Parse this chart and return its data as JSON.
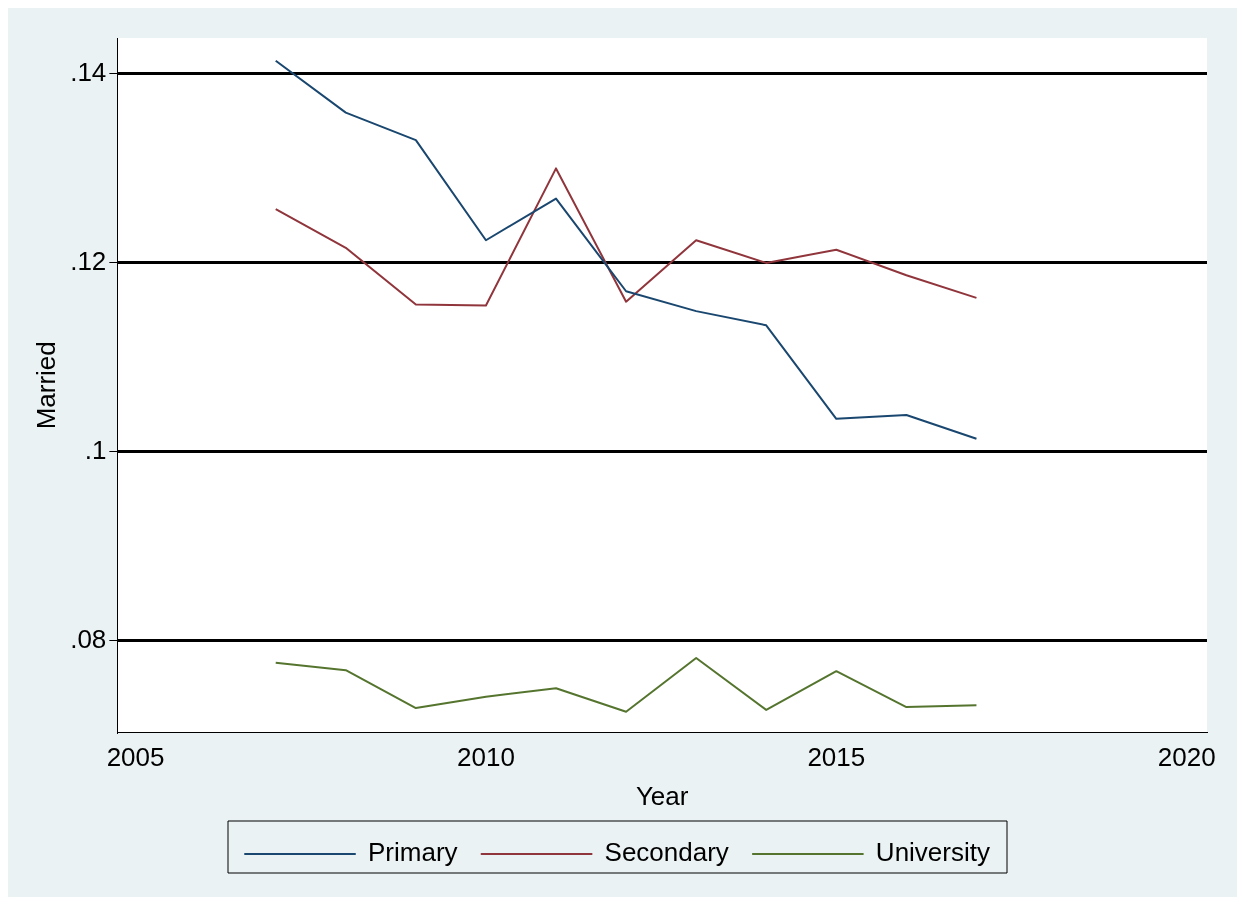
{
  "chart_data": {
    "type": "line",
    "xlabel": "Year",
    "ylabel": "Married",
    "x": [
      2007,
      2008,
      2009,
      2010,
      2011,
      2012,
      2013,
      2014,
      2015,
      2016,
      2017
    ],
    "series": [
      {
        "name": "Primary",
        "color": "#1a476f",
        "values": [
          0.1414,
          0.1359,
          0.133,
          0.1224,
          0.1268,
          0.117,
          0.1149,
          0.1134,
          0.1035,
          0.1039,
          0.1014
        ]
      },
      {
        "name": "Secondary",
        "color": "#90353b",
        "values": [
          0.1257,
          0.1216,
          0.1156,
          0.1155,
          0.13,
          0.1159,
          0.1224,
          0.12,
          0.1214,
          0.1187,
          0.1163
        ]
      },
      {
        "name": "University",
        "color": "#55752f",
        "values": [
          0.0777,
          0.0769,
          0.0729,
          0.0741,
          0.075,
          0.0725,
          0.0782,
          0.0727,
          0.0768,
          0.073,
          0.0732
        ]
      }
    ],
    "xlim": [
      2004.74,
      2020.29
    ],
    "xticks": [
      2005,
      2010,
      2015,
      2020
    ],
    "ylim": [
      0.0703,
      0.1438
    ],
    "yticks": [
      {
        "value": 0.08,
        "label": ".08"
      },
      {
        "value": 0.1,
        "label": ".1"
      },
      {
        "value": 0.12,
        "label": ".12"
      },
      {
        "value": 0.14,
        "label": ".14"
      }
    ],
    "grid": "y",
    "legend": "bottom",
    "marker": "none",
    "line_style": "solid"
  }
}
